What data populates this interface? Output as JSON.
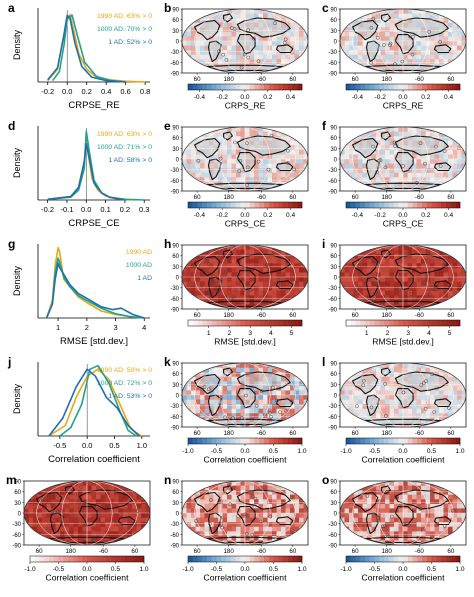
{
  "colors": {
    "series_1990": "#e6a817",
    "series_1000": "#1fa38c",
    "series_1ad": "#1f6fb0",
    "map_bg": "#f1d6cc",
    "land": "#c8c8c8",
    "grid": "#ffffff",
    "coast": "#111111",
    "red_dark": "#8c1a14",
    "red_mid": "#d8584a",
    "blue_dark": "#1d5a9c",
    "blue_mid": "#7fb0d6",
    "neutral": "#f3f1ef"
  },
  "map_axes": {
    "lat_labels": [
      "90",
      "60",
      "30",
      "0",
      "-30",
      "-60",
      "-90"
    ],
    "lon_labels": [
      "60",
      "180",
      "-60",
      "60"
    ]
  },
  "chart_data": [
    {
      "panel": "a",
      "type": "line",
      "xlabel": "CRPSE_RE",
      "ylabel": "Density",
      "xlim": [
        -0.3,
        0.85
      ],
      "xticks": [
        "-0.2",
        "0.0",
        "0.2",
        "0.4",
        "0.6",
        "0.8"
      ],
      "legend": [
        "1990 AD: 63% > 0",
        "1000 AD: 70% > 0",
        "1 AD: 52% > 0"
      ],
      "series": [
        {
          "name": "1990 AD: 63% > 0",
          "color": "#e6a817",
          "x": [
            -0.2,
            -0.1,
            -0.05,
            0.0,
            0.03,
            0.07,
            0.12,
            0.2,
            0.3,
            0.45,
            0.6,
            0.8
          ],
          "y": [
            0.02,
            0.18,
            0.55,
            0.88,
            0.96,
            0.72,
            0.4,
            0.18,
            0.07,
            0.03,
            0.01,
            0.0
          ]
        },
        {
          "name": "1000 AD: 70% > 0",
          "color": "#1fa38c",
          "x": [
            -0.15,
            -0.08,
            -0.03,
            0.0,
            0.05,
            0.1,
            0.18,
            0.3,
            0.45,
            0.6
          ],
          "y": [
            0.02,
            0.15,
            0.55,
            0.9,
            0.95,
            0.68,
            0.28,
            0.08,
            0.02,
            0.0
          ]
        },
        {
          "name": "1 AD: 52% > 0",
          "color": "#1f6fb0",
          "x": [
            -0.2,
            -0.1,
            -0.04,
            0.0,
            0.03,
            0.08,
            0.15,
            0.25,
            0.4,
            0.6
          ],
          "y": [
            0.03,
            0.2,
            0.62,
            0.95,
            0.9,
            0.55,
            0.22,
            0.07,
            0.02,
            0.0
          ]
        }
      ]
    },
    {
      "panel": "d",
      "type": "line",
      "xlabel": "CRPSE_CE",
      "ylabel": "Density",
      "xlim": [
        -0.25,
        0.33
      ],
      "xticks": [
        "-0.2",
        "-0.1",
        "0.0",
        "0.1",
        "0.2",
        "0.3"
      ],
      "legend": [
        "1990 AD: 63% > 0",
        "1000 AD: 71% > 0",
        "1 AD: 58% > 0"
      ],
      "series": [
        {
          "name": "1990 AD: 63% > 0",
          "color": "#e6a817",
          "x": [
            -0.2,
            -0.08,
            -0.04,
            -0.01,
            0.0,
            0.01,
            0.03,
            0.06,
            0.1,
            0.15,
            0.25
          ],
          "y": [
            0.01,
            0.05,
            0.18,
            0.55,
            0.92,
            0.65,
            0.3,
            0.14,
            0.06,
            0.02,
            0.0
          ]
        },
        {
          "name": "1000 AD: 71% > 0",
          "color": "#1fa38c",
          "x": [
            -0.2,
            -0.08,
            -0.04,
            -0.01,
            0.0,
            0.015,
            0.04,
            0.08,
            0.12,
            0.2,
            0.3
          ],
          "y": [
            0.01,
            0.04,
            0.14,
            0.45,
            0.98,
            0.7,
            0.28,
            0.1,
            0.04,
            0.01,
            0.0
          ]
        },
        {
          "name": "1 AD: 58% > 0",
          "color": "#1f6fb0",
          "x": [
            -0.2,
            -0.08,
            -0.04,
            -0.01,
            0.0,
            0.015,
            0.04,
            0.08,
            0.12,
            0.2
          ],
          "y": [
            0.01,
            0.05,
            0.18,
            0.55,
            0.8,
            0.6,
            0.24,
            0.1,
            0.04,
            0.0
          ]
        }
      ]
    },
    {
      "panel": "g",
      "type": "line",
      "xlabel": "RMSE [std.dev.]",
      "ylabel": "Density",
      "xlim": [
        0.3,
        4.2
      ],
      "xticks": [
        "1",
        "2",
        "3",
        "4"
      ],
      "legend": [
        "1990 AD",
        "1000 AD",
        "1 AD"
      ],
      "series": [
        {
          "name": "1990 AD",
          "color": "#e6a817",
          "x": [
            0.6,
            0.8,
            0.9,
            1.0,
            1.05,
            1.2,
            1.4,
            1.7,
            2.0,
            2.5,
            3.0,
            3.5,
            4.0
          ],
          "y": [
            0.0,
            0.25,
            0.75,
            1.0,
            0.95,
            0.55,
            0.45,
            0.3,
            0.22,
            0.1,
            0.05,
            0.02,
            0.0
          ]
        },
        {
          "name": "1000 AD",
          "color": "#1fa38c",
          "x": [
            0.6,
            0.8,
            0.9,
            1.0,
            1.05,
            1.2,
            1.4,
            1.7,
            2.0,
            2.5,
            3.0,
            3.5,
            4.0
          ],
          "y": [
            0.0,
            0.2,
            0.65,
            0.85,
            0.8,
            0.58,
            0.45,
            0.32,
            0.25,
            0.14,
            0.06,
            0.02,
            0.0
          ]
        },
        {
          "name": "1 AD",
          "color": "#1f6fb0",
          "x": [
            0.6,
            0.8,
            0.9,
            1.0,
            1.05,
            1.2,
            1.4,
            1.7,
            2.0,
            2.5,
            2.9,
            3.2,
            3.6,
            4.0
          ],
          "y": [
            0.0,
            0.2,
            0.55,
            0.78,
            0.72,
            0.62,
            0.48,
            0.35,
            0.28,
            0.16,
            0.12,
            0.14,
            0.05,
            0.0
          ]
        }
      ]
    },
    {
      "panel": "j",
      "type": "line",
      "xlabel": "Correlation coefficient",
      "ylabel": "Density",
      "xlim": [
        -0.9,
        1.15
      ],
      "xticks": [
        "-0.5",
        "0.0",
        "0.5",
        "1.0"
      ],
      "legend": [
        "1990 AD: 50% > 0",
        "1000 AD: 72% > 0",
        "1 AD: 53% > 0"
      ],
      "series": [
        {
          "name": "1990 AD: 50% > 0",
          "color": "#e6a817",
          "x": [
            -0.7,
            -0.4,
            -0.2,
            0.0,
            0.2,
            0.4,
            0.6,
            0.8,
            1.0
          ],
          "y": [
            0.0,
            0.15,
            0.55,
            0.85,
            0.95,
            0.8,
            0.45,
            0.1,
            0.0
          ]
        },
        {
          "name": "1000 AD: 72% > 0",
          "color": "#1fa38c",
          "x": [
            -0.5,
            -0.3,
            -0.1,
            0.05,
            0.2,
            0.4,
            0.6,
            0.75,
            0.9
          ],
          "y": [
            0.0,
            0.12,
            0.45,
            0.95,
            1.0,
            0.75,
            0.35,
            0.08,
            0.0
          ]
        },
        {
          "name": "1 AD: 53% > 0",
          "color": "#1f6fb0",
          "x": [
            -0.7,
            -0.45,
            -0.2,
            0.0,
            0.15,
            0.35,
            0.55,
            0.75,
            0.95
          ],
          "y": [
            0.0,
            0.25,
            0.7,
            0.95,
            0.85,
            0.55,
            0.4,
            0.15,
            0.0
          ]
        }
      ]
    },
    {
      "panel": "b",
      "type": "heatmap",
      "colorbar_label": "CRPS_RE",
      "colorbar_ticks": [
        "-0.4",
        "-0.2",
        "0.0",
        "0.2",
        "0.4"
      ],
      "range": [
        -0.5,
        0.5
      ],
      "base": "neutral"
    },
    {
      "panel": "c",
      "type": "heatmap",
      "colorbar_label": "CRPS_RE",
      "colorbar_ticks": [
        "-0.4",
        "-0.2",
        "0.0",
        "0.2",
        "0.4"
      ],
      "range": [
        -0.5,
        0.5
      ],
      "base": "neutral"
    },
    {
      "panel": "e",
      "type": "heatmap",
      "colorbar_label": "CRPS_CE",
      "colorbar_ticks": [
        "-0.4",
        "-0.2",
        "0.0",
        "0.2",
        "0.4"
      ],
      "range": [
        -0.5,
        0.5
      ],
      "base": "neutral"
    },
    {
      "panel": "f",
      "type": "heatmap",
      "colorbar_label": "CRPS_CE",
      "colorbar_ticks": [
        "-0.4",
        "-0.2",
        "0.0",
        "0.2",
        "0.4"
      ],
      "range": [
        -0.5,
        0.5
      ],
      "base": "neutral"
    },
    {
      "panel": "h",
      "type": "heatmap",
      "colorbar_label": "RMSE [std.dev.]",
      "colorbar_ticks": [
        "1",
        "2",
        "3",
        "4",
        "5"
      ],
      "range": [
        0,
        5.5
      ],
      "base": "red"
    },
    {
      "panel": "i",
      "type": "heatmap",
      "colorbar_label": "RMSE [std.dev.]",
      "colorbar_ticks": [
        "1",
        "2",
        "3",
        "4",
        "5"
      ],
      "range": [
        0,
        5.5
      ],
      "base": "red"
    },
    {
      "panel": "k",
      "type": "heatmap",
      "colorbar_label": "Correlation coefficient",
      "colorbar_ticks": [
        "-1.0",
        "-0.5",
        "0.0",
        "0.5",
        "1.0"
      ],
      "range": [
        -1,
        1
      ],
      "base": "mixed"
    },
    {
      "panel": "l",
      "type": "heatmap",
      "colorbar_label": "Correlation coefficient",
      "colorbar_ticks": [
        "-1.0",
        "-0.5",
        "0.0",
        "0.5",
        "1.0"
      ],
      "range": [
        -1,
        1
      ],
      "base": "neutral"
    },
    {
      "panel": "m",
      "type": "heatmap",
      "colorbar_label": "Correlation coefficient",
      "colorbar_ticks": [
        "-1.0",
        "-0.5",
        "0.0",
        "0.5",
        "1.0"
      ],
      "range": [
        -1,
        1
      ],
      "base": "red"
    },
    {
      "panel": "n",
      "type": "heatmap",
      "colorbar_label": "Correlation coefficient",
      "colorbar_ticks": [
        "-1.0",
        "-0.5",
        "0.0",
        "0.5",
        "1.0"
      ],
      "range": [
        -1,
        1
      ],
      "base": "mixedred"
    },
    {
      "panel": "o",
      "type": "heatmap",
      "colorbar_label": "Correlation coefficient",
      "colorbar_ticks": [
        "-1.0",
        "-0.5",
        "0.0",
        "0.5",
        "1.0"
      ],
      "range": [
        -1,
        1
      ],
      "base": "mixedred"
    }
  ]
}
